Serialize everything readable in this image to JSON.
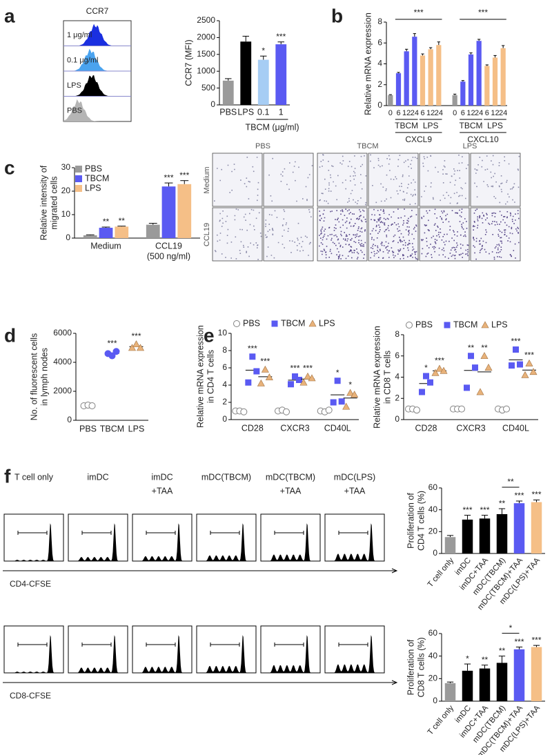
{
  "panel_labels": [
    "a",
    "b",
    "c",
    "d",
    "e",
    "f"
  ],
  "flow_a": {
    "title": "CCR7",
    "labels": [
      "1 μg/ml",
      "0.1 μg/ml",
      "LPS",
      "PBS"
    ]
  },
  "micrographs_c": {
    "columns": [
      "PBS",
      "TBCM",
      "LPS"
    ],
    "rows": [
      "Medium",
      "CCL19"
    ]
  },
  "flow_f": {
    "columns": [
      [
        "T cell only"
      ],
      [
        "imDC"
      ],
      [
        "imDC",
        "+TAA"
      ],
      [
        "mDC(TBCM)"
      ],
      [
        "mDC(TBCM)",
        "+TAA"
      ],
      [
        "mDC(LPS)",
        "+TAA"
      ]
    ],
    "rows": [
      "CD4-CFSE",
      "CD8-CFSE"
    ]
  },
  "chart_data": [
    {
      "type": "bar",
      "ylabel": [
        "CCR7 (MFI)"
      ],
      "categories": [
        "PBS",
        "LPS",
        "0.1",
        "1"
      ],
      "values": [
        720,
        1880,
        1340,
        1800
      ],
      "errors": [
        60,
        160,
        110,
        70
      ],
      "colors": [
        "#9a9a9a",
        "#000000",
        "#a6cdf4",
        "#5a5af2"
      ],
      "significance": [
        null,
        null,
        "*",
        "***"
      ],
      "ylim": [
        0,
        2500
      ],
      "yticks": [
        0,
        500,
        1000,
        1500,
        2000,
        2500
      ],
      "group_label": "TBCM (μg/ml)"
    },
    {
      "type": "bar",
      "ylabel": [
        "Relative mRNA expression"
      ],
      "categories": [
        "0",
        "6",
        "12",
        "24",
        "6",
        "12",
        "24",
        "0",
        "6",
        "12",
        "24",
        "6",
        "12",
        "24"
      ],
      "values": [
        1.0,
        3.1,
        5.2,
        6.6,
        4.8,
        5.4,
        5.8,
        1.0,
        2.3,
        4.9,
        6.2,
        3.8,
        4.6,
        5.5
      ],
      "errors": [
        0.05,
        0.08,
        0.2,
        0.3,
        0.15,
        0.15,
        0.3,
        0.1,
        0.1,
        0.15,
        0.15,
        0.1,
        0.2,
        0.25
      ],
      "colors": [
        "#9a9a9a",
        "#5a5af2",
        "#5a5af2",
        "#5a5af2",
        "#f5bf87",
        "#f5bf87",
        "#f5bf87",
        "#9a9a9a",
        "#5a5af2",
        "#5a5af2",
        "#5a5af2",
        "#f5bf87",
        "#f5bf87",
        "#f5bf87"
      ],
      "groups": [
        "TBCM",
        "LPS",
        "TBCM",
        "LPS"
      ],
      "genes": [
        "CXCL9",
        "CXCL10"
      ],
      "bracket_labels": [
        "***",
        "***"
      ],
      "ylim": [
        0,
        8
      ],
      "yticks": [
        0,
        2,
        4,
        6,
        8
      ]
    },
    {
      "type": "grouped_bar",
      "ylabel": [
        "Relative intensity of",
        "migrated cells"
      ],
      "categories": [
        "Medium",
        "CCL19"
      ],
      "category_notes": [
        null,
        "(500 ng/ml)"
      ],
      "series": [
        {
          "name": "PBS",
          "color": "#9a9a9a",
          "values": [
            1.2,
            5.7
          ],
          "errors": [
            0.2,
            0.6
          ],
          "significance": [
            null,
            null
          ]
        },
        {
          "name": "TBCM",
          "color": "#5a5af2",
          "values": [
            4.4,
            22
          ],
          "errors": [
            0.3,
            1.5
          ],
          "significance": [
            "**",
            "***"
          ]
        },
        {
          "name": "LPS",
          "color": "#f5bf87",
          "values": [
            4.9,
            23
          ],
          "errors": [
            0.2,
            1.5
          ],
          "significance": [
            "**",
            "***"
          ]
        }
      ],
      "ylim": [
        0,
        30
      ],
      "yticks": [
        0,
        10,
        20,
        30
      ],
      "legend": "top-left"
    },
    {
      "type": "dot",
      "ylabel": [
        "No. of fluorescent cells",
        "in lymph nodes"
      ],
      "categories": [
        "PBS",
        "TBCM",
        "LPS"
      ],
      "values": [
        [
          1000,
          1050,
          1000
        ],
        [
          4600,
          4450,
          4750
        ],
        [
          5000,
          5250,
          5000
        ]
      ],
      "colors": [
        "#808080",
        "#5a5af2",
        "#e8b27a"
      ],
      "markers": [
        "circle-open",
        "circle",
        "triangle"
      ],
      "significance": [
        null,
        "***",
        "***"
      ],
      "ylim": [
        0,
        6000
      ],
      "yticks": [
        0,
        2000,
        4000,
        6000
      ]
    },
    {
      "type": "dot",
      "ylabel": [
        "Relative mRNA expression",
        "in CD4 T cells"
      ],
      "categories": [
        "CD28",
        "CXCR3",
        "CD40L"
      ],
      "series": [
        {
          "name": "PBS",
          "color": "#808080",
          "marker": "circle-open",
          "values": [
            [
              1.0,
              1.0,
              0.9
            ],
            [
              1.0,
              1.1,
              0.9
            ],
            [
              1.0,
              0.9,
              1.1
            ]
          ],
          "significance": [
            null,
            null,
            null
          ]
        },
        {
          "name": "TBCM",
          "color": "#5a5af2",
          "marker": "square",
          "values": [
            [
              4.3,
              7.3,
              5.6
            ],
            [
              4.1,
              5.0,
              4.6
            ],
            [
              2.0,
              4.5,
              2.1
            ]
          ],
          "significance": [
            "***",
            "***",
            "*"
          ]
        },
        {
          "name": "LPS",
          "color": "#e8b27a",
          "marker": "triangle",
          "values": [
            [
              4.2,
              5.8,
              4.9
            ],
            [
              4.3,
              5.0,
              4.8
            ],
            [
              1.5,
              3.1,
              2.9
            ]
          ],
          "significance": [
            "***",
            "***",
            "*"
          ]
        }
      ],
      "ylim": [
        0,
        10
      ],
      "yticks": [
        0,
        2,
        4,
        6,
        8,
        10
      ],
      "legend": "top"
    },
    {
      "type": "dot",
      "ylabel": [
        "Relative mRNA expression",
        "in CD8 T cells"
      ],
      "categories": [
        "CD28",
        "CXCR3",
        "CD40L"
      ],
      "series": [
        {
          "name": "PBS",
          "color": "#808080",
          "marker": "circle-open",
          "values": [
            [
              1.0,
              1.0,
              0.9
            ],
            [
              1.0,
              1.0,
              1.0
            ],
            [
              1.0,
              0.9,
              1.0
            ]
          ],
          "significance": [
            null,
            null,
            null
          ]
        },
        {
          "name": "TBCM",
          "color": "#5a5af2",
          "marker": "square",
          "values": [
            [
              2.6,
              4.1,
              3.5
            ],
            [
              3.0,
              6.0,
              4.9
            ],
            [
              5.1,
              6.6,
              5.2
            ]
          ],
          "significance": [
            "*",
            "**",
            "***"
          ]
        },
        {
          "name": "LPS",
          "color": "#e8b27a",
          "marker": "triangle",
          "values": [
            [
              4.4,
              4.8,
              4.6
            ],
            [
              2.6,
              6.0,
              4.9
            ],
            [
              4.2,
              5.3,
              4.5
            ]
          ],
          "significance": [
            "***",
            "**",
            "***"
          ]
        }
      ],
      "ylim": [
        0,
        8
      ],
      "yticks": [
        0,
        2,
        4,
        6,
        8
      ],
      "legend": "top"
    },
    {
      "type": "bar",
      "ylabel": [
        "Proliferation of",
        "CD4 T cells (%)"
      ],
      "categories": [
        "T cell only",
        "imDC",
        "imDC+TAA",
        "mDC(TBCM)",
        "mDC(TBCM)+TAA",
        "mDC(LPS)+TAA"
      ],
      "values": [
        15,
        31,
        32,
        36,
        46,
        47
      ],
      "errors": [
        1.5,
        4,
        3,
        5,
        2,
        2
      ],
      "colors": [
        "#9a9a9a",
        "#000000",
        "#000000",
        "#000000",
        "#5a5af2",
        "#f5bf87"
      ],
      "significance": [
        null,
        "***",
        "***",
        "**",
        "***",
        "***"
      ],
      "bracket_label": "**",
      "rotated_labels": true,
      "ylim": [
        0,
        60
      ],
      "yticks": [
        0,
        20,
        40,
        60
      ]
    },
    {
      "type": "bar",
      "ylabel": [
        "Proliferation of",
        "CD8 T cells (%)"
      ],
      "categories": [
        "T cell only",
        "imDC",
        "imDC+TAA",
        "mDC(TBCM)",
        "mDC(TBCM)+TAA",
        "mDC(LPS)+TAA"
      ],
      "values": [
        16,
        27,
        29,
        34,
        46,
        48
      ],
      "errors": [
        1,
        6,
        3,
        6,
        2,
        1.5
      ],
      "colors": [
        "#9a9a9a",
        "#000000",
        "#000000",
        "#000000",
        "#5a5af2",
        "#f5bf87"
      ],
      "significance": [
        null,
        "*",
        "**",
        "**",
        "***",
        "***"
      ],
      "bracket_label": "*",
      "rotated_labels": true,
      "ylim": [
        0,
        60
      ],
      "yticks": [
        0,
        20,
        40,
        60
      ]
    }
  ]
}
